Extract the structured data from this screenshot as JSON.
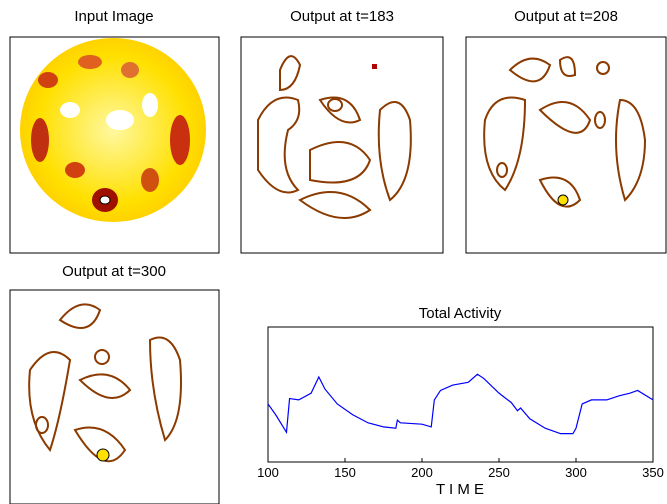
{
  "panels": [
    {
      "title": "Input Image"
    },
    {
      "title": "Output at t=183"
    },
    {
      "title": "Output at t=208"
    },
    {
      "title": "Output at t=300"
    }
  ],
  "chart_data": {
    "type": "line",
    "title": "Total Activity",
    "xlabel": "T I M E",
    "x": [
      100,
      105,
      112,
      114,
      120,
      128,
      133,
      137,
      145,
      155,
      165,
      175,
      183,
      184,
      186,
      200,
      206,
      208,
      212,
      220,
      230,
      236,
      240,
      250,
      258,
      262,
      264,
      270,
      280,
      290,
      298,
      300,
      304,
      310,
      320,
      328,
      335,
      340,
      350
    ],
    "series": [
      {
        "name": "Total Activity",
        "color": "#0000ff",
        "values": [
          0.43,
          0.35,
          0.22,
          0.47,
          0.46,
          0.51,
          0.63,
          0.54,
          0.43,
          0.35,
          0.29,
          0.26,
          0.25,
          0.31,
          0.29,
          0.28,
          0.26,
          0.46,
          0.53,
          0.57,
          0.59,
          0.65,
          0.62,
          0.51,
          0.44,
          0.38,
          0.4,
          0.32,
          0.25,
          0.21,
          0.21,
          0.25,
          0.43,
          0.46,
          0.46,
          0.49,
          0.51,
          0.53,
          0.46
        ]
      }
    ],
    "xlim": [
      100,
      350
    ],
    "ylim": [
      0,
      1
    ],
    "xticks": [
      100,
      150,
      200,
      250,
      300,
      350
    ]
  }
}
